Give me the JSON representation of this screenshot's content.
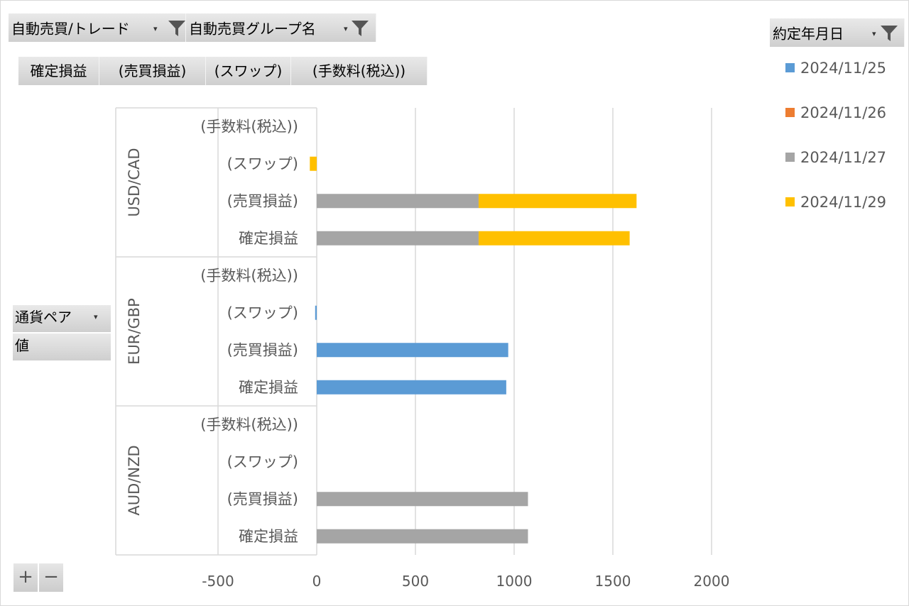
{
  "filters": {
    "trade": {
      "label": "自動売買/トレード"
    },
    "group": {
      "label": "自動売買グループ名"
    },
    "date": {
      "label": "約定年月日"
    }
  },
  "values_buttons": [
    "確定損益",
    "(売買損益)",
    "(スワップ)",
    "(手数料(税込))"
  ],
  "row_fields": {
    "pair_label": "通貨ペア",
    "values_label": "値"
  },
  "zoom": {
    "plus": "+",
    "minus": "−"
  },
  "colors": {
    "2024/11/25": "#5b9bd5",
    "2024/11/26": "#ed7d31",
    "2024/11/27": "#a5a5a5",
    "2024/11/29": "#ffc000",
    "gridline": "#d9d9d9",
    "axis_text": "#595959",
    "button_bg": "#dcdcdc"
  },
  "icons": {
    "filter": "funnel-filter-icon",
    "dropdown": "dropdown-arrow-icon"
  },
  "chart_data": {
    "type": "bar",
    "orientation": "horizontal",
    "stacked": true,
    "xlim": [
      -500,
      2000
    ],
    "x_ticks": [
      "-500",
      "0",
      "500",
      "1000",
      "1500",
      "2000"
    ],
    "grid": true,
    "legend_position": "right",
    "legend": [
      "2024/11/25",
      "2024/11/26",
      "2024/11/27",
      "2024/11/29"
    ],
    "groups": [
      {
        "name": "USD/CAD",
        "categories": [
          "(手数料(税込))",
          "(スワップ)",
          "(売買損益)",
          "確定損益"
        ],
        "series": [
          {
            "name": "2024/11/25",
            "values": [
              0,
              0,
              0,
              0
            ]
          },
          {
            "name": "2024/11/26",
            "values": [
              0,
              0,
              0,
              0
            ]
          },
          {
            "name": "2024/11/27",
            "values": [
              0,
              0,
              820,
              820
            ]
          },
          {
            "name": "2024/11/29",
            "values": [
              0,
              -35,
              800,
              765
            ]
          }
        ]
      },
      {
        "name": "EUR/GBP",
        "categories": [
          "(手数料(税込))",
          "(スワップ)",
          "(売買損益)",
          "確定損益"
        ],
        "series": [
          {
            "name": "2024/11/25",
            "values": [
              0,
              -8,
              970,
              960
            ]
          },
          {
            "name": "2024/11/26",
            "values": [
              0,
              0,
              0,
              0
            ]
          },
          {
            "name": "2024/11/27",
            "values": [
              0,
              0,
              0,
              0
            ]
          },
          {
            "name": "2024/11/29",
            "values": [
              0,
              0,
              0,
              0
            ]
          }
        ]
      },
      {
        "name": "AUD/NZD",
        "categories": [
          "(手数料(税込))",
          "(スワップ)",
          "(売買損益)",
          "確定損益"
        ],
        "series": [
          {
            "name": "2024/11/25",
            "values": [
              0,
              0,
              0,
              0
            ]
          },
          {
            "name": "2024/11/26",
            "values": [
              0,
              0,
              0,
              0
            ]
          },
          {
            "name": "2024/11/27",
            "values": [
              0,
              0,
              1070,
              1070
            ]
          },
          {
            "name": "2024/11/29",
            "values": [
              0,
              0,
              0,
              0
            ]
          }
        ]
      }
    ]
  }
}
